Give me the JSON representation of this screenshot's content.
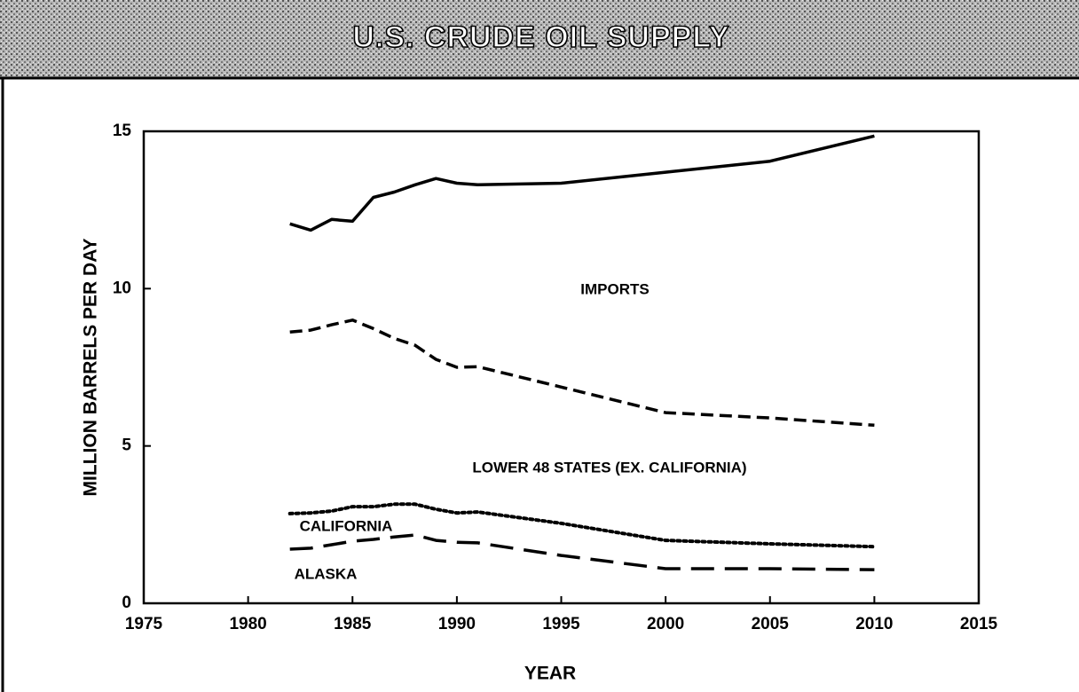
{
  "chart_data": {
    "type": "line",
    "stacked": true,
    "title": "U.S. CRUDE OIL SUPPLY",
    "xlabel": "YEAR",
    "ylabel": "MILLION BARRELS PER DAY",
    "x": [
      1982,
      1983,
      1984,
      1985,
      1986,
      1987,
      1988,
      1989,
      1990,
      1991,
      1995,
      2000,
      2005,
      2010
    ],
    "series": [
      {
        "name": "ALASKA",
        "color": "#000000",
        "line_style": "long-dashed",
        "values": [
          1.72,
          1.75,
          1.86,
          1.97,
          2.03,
          2.11,
          2.17,
          2.0,
          1.94,
          1.92,
          1.52,
          1.1,
          1.1,
          1.07
        ]
      },
      {
        "name": "CALIFORNIA",
        "color": "#000000",
        "line_style": "dotted",
        "values": [
          1.13,
          1.12,
          1.07,
          1.1,
          1.04,
          1.04,
          0.98,
          0.99,
          0.93,
          0.98,
          1.02,
          0.9,
          0.79,
          0.73
        ]
      },
      {
        "name": "LOWER 48 STATES (EX. CALIFORNIA)",
        "color": "#000000",
        "line_style": "dashed",
        "values": [
          5.77,
          5.81,
          5.92,
          5.93,
          5.66,
          5.27,
          5.05,
          4.76,
          4.63,
          4.62,
          4.33,
          4.06,
          4.0,
          3.86
        ]
      },
      {
        "name": "IMPORTS",
        "color": "#000000",
        "line_style": "solid",
        "values": [
          3.44,
          3.18,
          3.35,
          3.14,
          4.17,
          4.65,
          5.1,
          5.75,
          5.85,
          5.78,
          6.48,
          7.64,
          8.16,
          9.19
        ]
      }
    ],
    "xlim": [
      1975,
      2015
    ],
    "xticks": [
      1975,
      1980,
      1985,
      1990,
      1995,
      2000,
      2005,
      2010,
      2015
    ],
    "ylim": [
      0,
      15
    ],
    "yticks": [
      0,
      5,
      10,
      15
    ],
    "grid": false
  }
}
